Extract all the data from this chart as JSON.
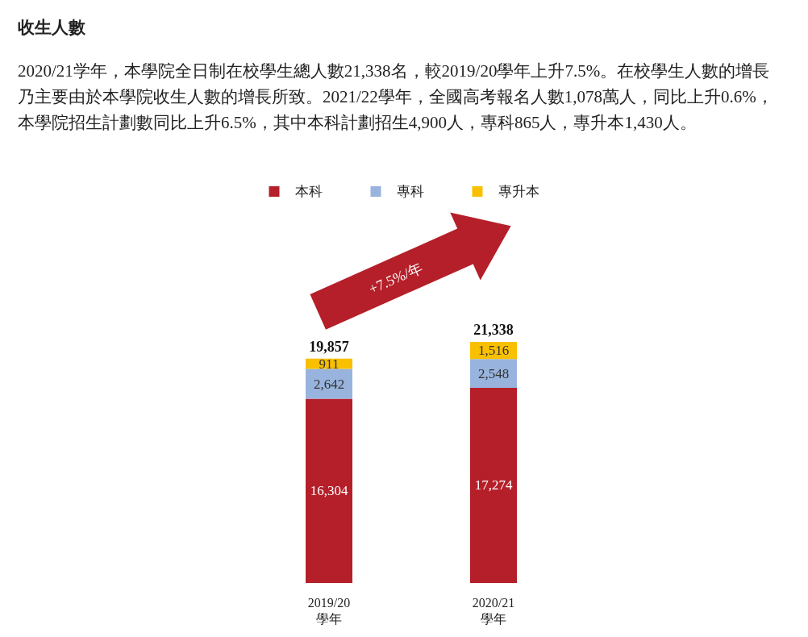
{
  "chart_data": {
    "type": "bar",
    "title": "收生人數",
    "subtitle": "2020/21学年，本學院全日制在校學生總人數21,338名，較2019/20學年上升7.5%。在校學生人數的增長乃主要由於本學院收生人數的增長所致。2021/22學年，全國高考報名人數1,078萬人，同比上升0.6%，本學院招生計劃數同比上升6.5%，其中本科計劃招生4,900人，專科865人，專升本1,430人。",
    "categories": [
      "2019/20\n學年",
      "2020/21\n學年"
    ],
    "series": [
      {
        "name": "本科",
        "color": "#b51f29",
        "values": [
          16304,
          17274
        ],
        "value_labels": [
          "16,304",
          "17,274"
        ]
      },
      {
        "name": "專科",
        "color": "#98b4de",
        "values": [
          2642,
          2548
        ],
        "value_labels": [
          "2,642",
          "2,548"
        ]
      },
      {
        "name": "專升本",
        "color": "#f8c000",
        "values": [
          911,
          1516
        ],
        "value_labels": [
          "911",
          "1,516"
        ]
      }
    ],
    "stacked": true,
    "totals": [
      "19,857",
      "21,338"
    ],
    "annotations": [
      "+7.5%/年"
    ],
    "legend": "top"
  }
}
